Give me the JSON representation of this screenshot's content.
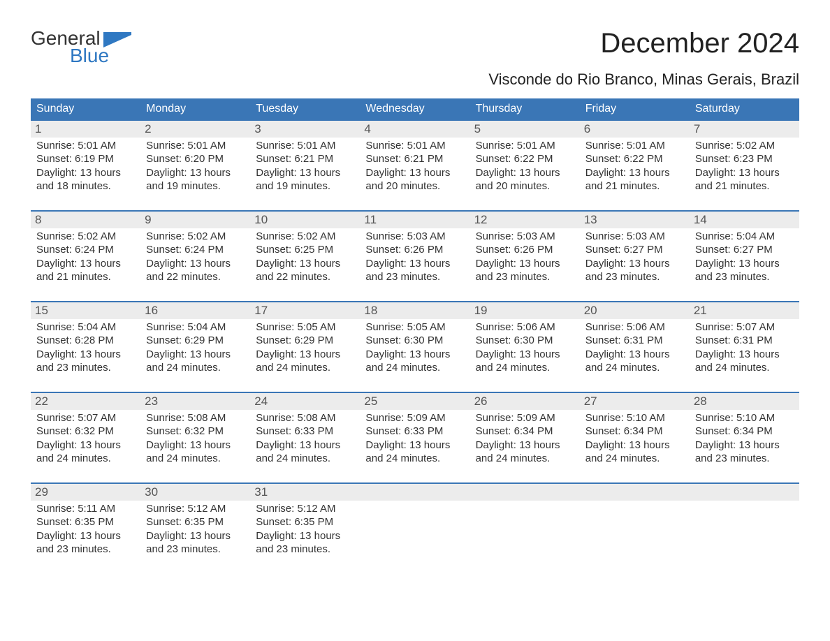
{
  "colors": {
    "brand_blue": "#2f78c2",
    "header_row_bg": "#3a76b6",
    "header_row_text": "#ffffff",
    "day_border": "#3a76b6",
    "day_numstrip_bg": "#ececec",
    "day_body_text": "#333333",
    "page_bg": "#ffffff",
    "title_text": "#222222"
  },
  "logo": {
    "text_top": "General",
    "text_bottom": "Blue"
  },
  "title": "December 2024",
  "location": "Visconde do Rio Branco, Minas Gerais, Brazil",
  "weekdays": [
    "Sunday",
    "Monday",
    "Tuesday",
    "Wednesday",
    "Thursday",
    "Friday",
    "Saturday"
  ],
  "weeks": [
    [
      {
        "num": "1",
        "sunrise": "Sunrise: 5:01 AM",
        "sunset": "Sunset: 6:19 PM",
        "d1": "Daylight: 13 hours",
        "d2": "and 18 minutes."
      },
      {
        "num": "2",
        "sunrise": "Sunrise: 5:01 AM",
        "sunset": "Sunset: 6:20 PM",
        "d1": "Daylight: 13 hours",
        "d2": "and 19 minutes."
      },
      {
        "num": "3",
        "sunrise": "Sunrise: 5:01 AM",
        "sunset": "Sunset: 6:21 PM",
        "d1": "Daylight: 13 hours",
        "d2": "and 19 minutes."
      },
      {
        "num": "4",
        "sunrise": "Sunrise: 5:01 AM",
        "sunset": "Sunset: 6:21 PM",
        "d1": "Daylight: 13 hours",
        "d2": "and 20 minutes."
      },
      {
        "num": "5",
        "sunrise": "Sunrise: 5:01 AM",
        "sunset": "Sunset: 6:22 PM",
        "d1": "Daylight: 13 hours",
        "d2": "and 20 minutes."
      },
      {
        "num": "6",
        "sunrise": "Sunrise: 5:01 AM",
        "sunset": "Sunset: 6:22 PM",
        "d1": "Daylight: 13 hours",
        "d2": "and 21 minutes."
      },
      {
        "num": "7",
        "sunrise": "Sunrise: 5:02 AM",
        "sunset": "Sunset: 6:23 PM",
        "d1": "Daylight: 13 hours",
        "d2": "and 21 minutes."
      }
    ],
    [
      {
        "num": "8",
        "sunrise": "Sunrise: 5:02 AM",
        "sunset": "Sunset: 6:24 PM",
        "d1": "Daylight: 13 hours",
        "d2": "and 21 minutes."
      },
      {
        "num": "9",
        "sunrise": "Sunrise: 5:02 AM",
        "sunset": "Sunset: 6:24 PM",
        "d1": "Daylight: 13 hours",
        "d2": "and 22 minutes."
      },
      {
        "num": "10",
        "sunrise": "Sunrise: 5:02 AM",
        "sunset": "Sunset: 6:25 PM",
        "d1": "Daylight: 13 hours",
        "d2": "and 22 minutes."
      },
      {
        "num": "11",
        "sunrise": "Sunrise: 5:03 AM",
        "sunset": "Sunset: 6:26 PM",
        "d1": "Daylight: 13 hours",
        "d2": "and 23 minutes."
      },
      {
        "num": "12",
        "sunrise": "Sunrise: 5:03 AM",
        "sunset": "Sunset: 6:26 PM",
        "d1": "Daylight: 13 hours",
        "d2": "and 23 minutes."
      },
      {
        "num": "13",
        "sunrise": "Sunrise: 5:03 AM",
        "sunset": "Sunset: 6:27 PM",
        "d1": "Daylight: 13 hours",
        "d2": "and 23 minutes."
      },
      {
        "num": "14",
        "sunrise": "Sunrise: 5:04 AM",
        "sunset": "Sunset: 6:27 PM",
        "d1": "Daylight: 13 hours",
        "d2": "and 23 minutes."
      }
    ],
    [
      {
        "num": "15",
        "sunrise": "Sunrise: 5:04 AM",
        "sunset": "Sunset: 6:28 PM",
        "d1": "Daylight: 13 hours",
        "d2": "and 23 minutes."
      },
      {
        "num": "16",
        "sunrise": "Sunrise: 5:04 AM",
        "sunset": "Sunset: 6:29 PM",
        "d1": "Daylight: 13 hours",
        "d2": "and 24 minutes."
      },
      {
        "num": "17",
        "sunrise": "Sunrise: 5:05 AM",
        "sunset": "Sunset: 6:29 PM",
        "d1": "Daylight: 13 hours",
        "d2": "and 24 minutes."
      },
      {
        "num": "18",
        "sunrise": "Sunrise: 5:05 AM",
        "sunset": "Sunset: 6:30 PM",
        "d1": "Daylight: 13 hours",
        "d2": "and 24 minutes."
      },
      {
        "num": "19",
        "sunrise": "Sunrise: 5:06 AM",
        "sunset": "Sunset: 6:30 PM",
        "d1": "Daylight: 13 hours",
        "d2": "and 24 minutes."
      },
      {
        "num": "20",
        "sunrise": "Sunrise: 5:06 AM",
        "sunset": "Sunset: 6:31 PM",
        "d1": "Daylight: 13 hours",
        "d2": "and 24 minutes."
      },
      {
        "num": "21",
        "sunrise": "Sunrise: 5:07 AM",
        "sunset": "Sunset: 6:31 PM",
        "d1": "Daylight: 13 hours",
        "d2": "and 24 minutes."
      }
    ],
    [
      {
        "num": "22",
        "sunrise": "Sunrise: 5:07 AM",
        "sunset": "Sunset: 6:32 PM",
        "d1": "Daylight: 13 hours",
        "d2": "and 24 minutes."
      },
      {
        "num": "23",
        "sunrise": "Sunrise: 5:08 AM",
        "sunset": "Sunset: 6:32 PM",
        "d1": "Daylight: 13 hours",
        "d2": "and 24 minutes."
      },
      {
        "num": "24",
        "sunrise": "Sunrise: 5:08 AM",
        "sunset": "Sunset: 6:33 PM",
        "d1": "Daylight: 13 hours",
        "d2": "and 24 minutes."
      },
      {
        "num": "25",
        "sunrise": "Sunrise: 5:09 AM",
        "sunset": "Sunset: 6:33 PM",
        "d1": "Daylight: 13 hours",
        "d2": "and 24 minutes."
      },
      {
        "num": "26",
        "sunrise": "Sunrise: 5:09 AM",
        "sunset": "Sunset: 6:34 PM",
        "d1": "Daylight: 13 hours",
        "d2": "and 24 minutes."
      },
      {
        "num": "27",
        "sunrise": "Sunrise: 5:10 AM",
        "sunset": "Sunset: 6:34 PM",
        "d1": "Daylight: 13 hours",
        "d2": "and 24 minutes."
      },
      {
        "num": "28",
        "sunrise": "Sunrise: 5:10 AM",
        "sunset": "Sunset: 6:34 PM",
        "d1": "Daylight: 13 hours",
        "d2": "and 23 minutes."
      }
    ],
    [
      {
        "num": "29",
        "sunrise": "Sunrise: 5:11 AM",
        "sunset": "Sunset: 6:35 PM",
        "d1": "Daylight: 13 hours",
        "d2": "and 23 minutes."
      },
      {
        "num": "30",
        "sunrise": "Sunrise: 5:12 AM",
        "sunset": "Sunset: 6:35 PM",
        "d1": "Daylight: 13 hours",
        "d2": "and 23 minutes."
      },
      {
        "num": "31",
        "sunrise": "Sunrise: 5:12 AM",
        "sunset": "Sunset: 6:35 PM",
        "d1": "Daylight: 13 hours",
        "d2": "and 23 minutes."
      },
      null,
      null,
      null,
      null
    ]
  ]
}
